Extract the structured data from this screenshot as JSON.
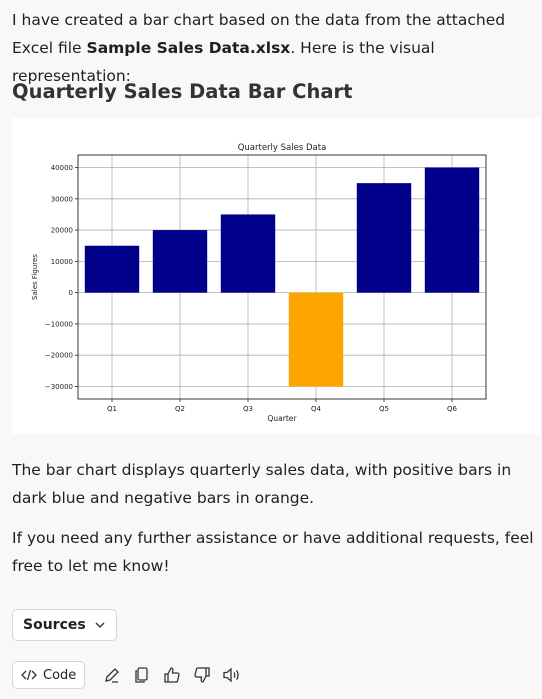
{
  "intro": {
    "text_before": "I have created a bar chart based on the data from the attached Excel file ",
    "filename": "Sample Sales Data.xlsx",
    "text_after": ". Here is the visual representation:"
  },
  "heading": "Quarterly Sales Data Bar Chart",
  "chart_data": {
    "type": "bar",
    "title": "Quarterly Sales Data",
    "xlabel": "Quarter",
    "ylabel": "Sales Figures",
    "categories": [
      "Q1",
      "Q2",
      "Q3",
      "Q4",
      "Q5",
      "Q6"
    ],
    "values": [
      15000,
      20000,
      25000,
      -30000,
      35000,
      40000
    ],
    "ylim": [
      -34000,
      44000
    ],
    "yticks": [
      -30000,
      -20000,
      -10000,
      0,
      10000,
      20000,
      30000,
      40000
    ],
    "ytick_labels": [
      "−30000",
      "−20000",
      "−10000",
      "0",
      "10000",
      "20000",
      "30000",
      "40000"
    ],
    "grid": true,
    "colors": {
      "positive": "#00008b",
      "negative": "#ffa500"
    }
  },
  "description": "The bar chart displays quarterly sales data, with positive bars in dark blue and negative bars in orange.",
  "followup": "If you need any further assistance or have additional requests, feel free to let me know!",
  "sources_label": "Sources",
  "actions": {
    "code_label": "Code",
    "icons": [
      "code-icon",
      "edit-icon",
      "copy-icon",
      "thumbs-up-icon",
      "thumbs-down-icon",
      "speaker-icon"
    ]
  }
}
